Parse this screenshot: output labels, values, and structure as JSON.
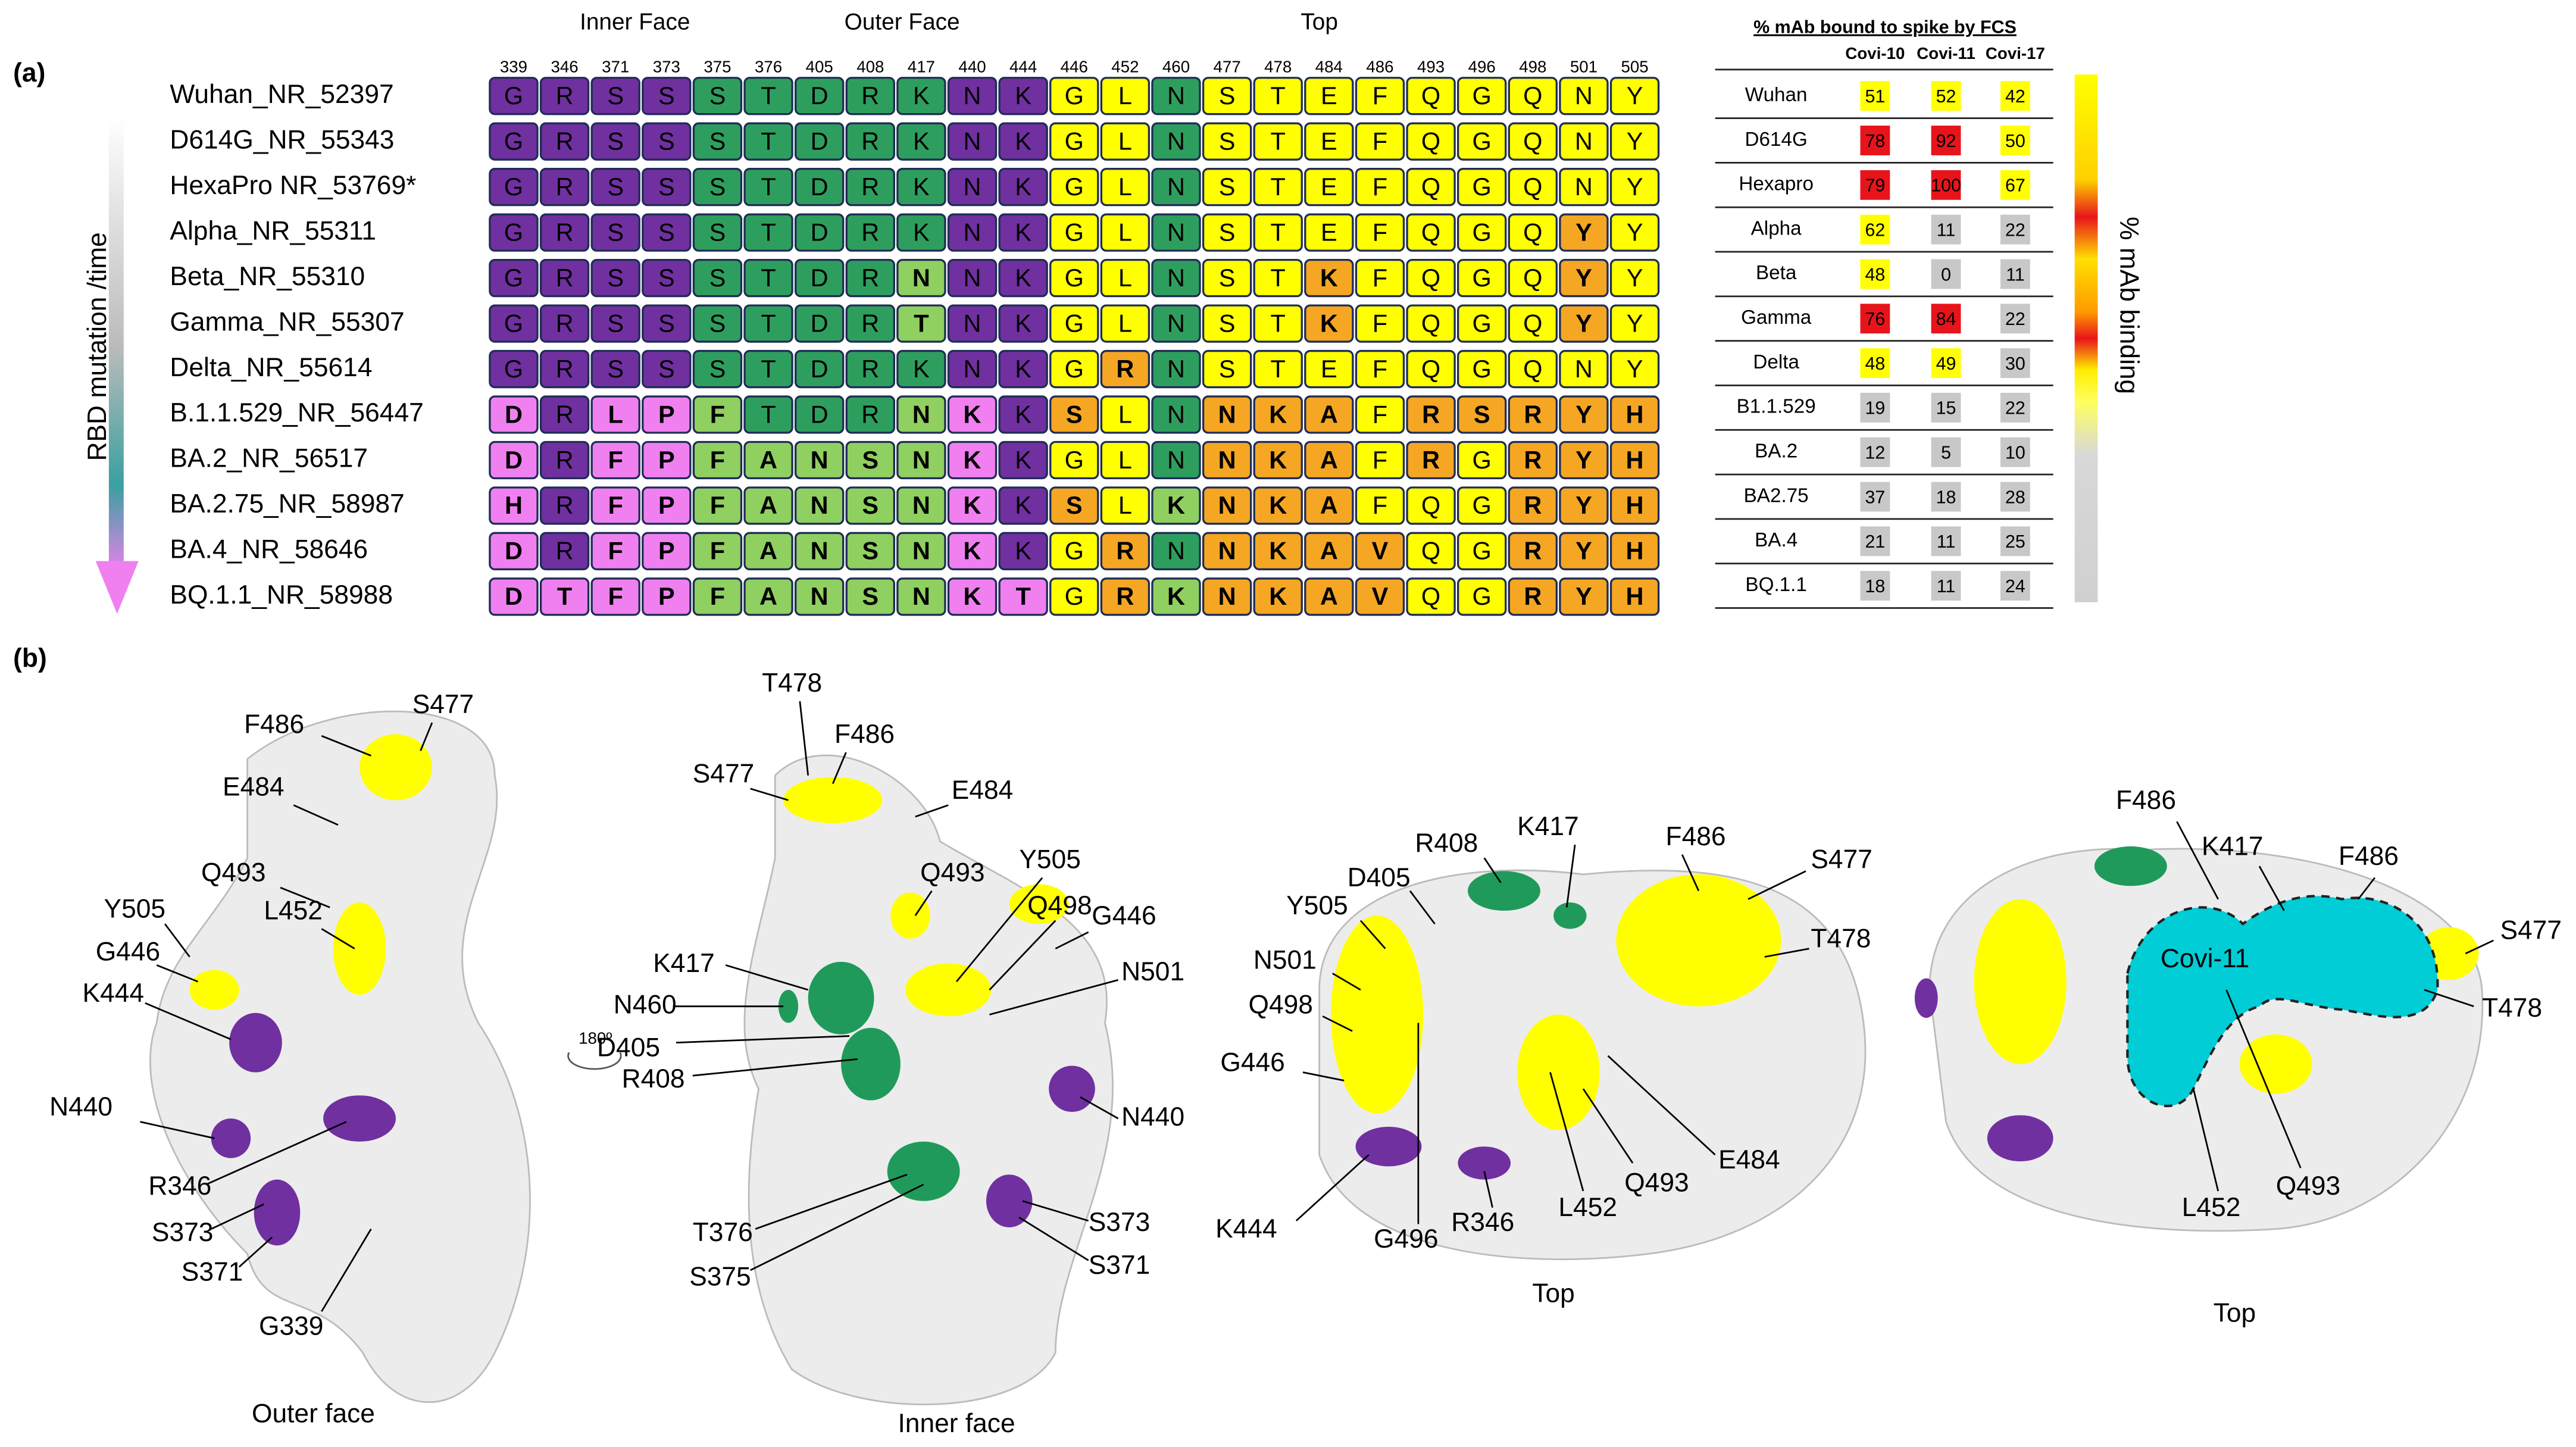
{
  "panel_a": {
    "label": "(a)",
    "face_labels": [
      "Inner Face",
      "Outer Face",
      "Top"
    ],
    "axis_label": "RBD  mutation /time",
    "positions": [
      339,
      346,
      371,
      373,
      375,
      376,
      405,
      408,
      417,
      440,
      444,
      446,
      452,
      460,
      477,
      478,
      484,
      486,
      493,
      496,
      498,
      501,
      505
    ],
    "column_colors": [
      "#7030a0",
      "#7030a0",
      "#7030a0",
      "#7030a0",
      "#2e9e5e",
      "#2e9e5e",
      "#2e9e5e",
      "#2e9e5e",
      "#2e9e5e",
      "#7030a0",
      "#7030a0",
      "#ffff00",
      "#ffff00",
      "#2e9e5e",
      "#ffff00",
      "#ffff00",
      "#ffff00",
      "#ffff00",
      "#ffff00",
      "#ffff00",
      "#ffff00",
      "#ffff00",
      "#ffff00"
    ],
    "mutant_colors": [
      "#f080f0",
      "#f080f0",
      "#f080f0",
      "#f080f0",
      "#8fd060",
      "#8fd060",
      "#8fd060",
      "#8fd060",
      "#8fd060",
      "#f080f0",
      "#f080f0",
      "#f5a623",
      "#f5a623",
      "#8fd060",
      "#f5a623",
      "#f5a623",
      "#f5a623",
      "#f5a623",
      "#f5a623",
      "#f5a623",
      "#f5a623",
      "#f5a623",
      "#f5a623"
    ],
    "variants": [
      {
        "name": "Wuhan_NR_52397",
        "residues": [
          "G",
          "R",
          "S",
          "S",
          "S",
          "T",
          "D",
          "R",
          "K",
          "N",
          "K",
          "G",
          "L",
          "N",
          "S",
          "T",
          "E",
          "F",
          "Q",
          "G",
          "Q",
          "N",
          "Y"
        ]
      },
      {
        "name": "D614G_NR_55343",
        "residues": [
          "G",
          "R",
          "S",
          "S",
          "S",
          "T",
          "D",
          "R",
          "K",
          "N",
          "K",
          "G",
          "L",
          "N",
          "S",
          "T",
          "E",
          "F",
          "Q",
          "G",
          "Q",
          "N",
          "Y"
        ]
      },
      {
        "name": "HexaPro NR_53769*",
        "residues": [
          "G",
          "R",
          "S",
          "S",
          "S",
          "T",
          "D",
          "R",
          "K",
          "N",
          "K",
          "G",
          "L",
          "N",
          "S",
          "T",
          "E",
          "F",
          "Q",
          "G",
          "Q",
          "N",
          "Y"
        ]
      },
      {
        "name": "Alpha_NR_55311",
        "residues": [
          "G",
          "R",
          "S",
          "S",
          "S",
          "T",
          "D",
          "R",
          "K",
          "N",
          "K",
          "G",
          "L",
          "N",
          "S",
          "T",
          "E",
          "F",
          "Q",
          "G",
          "Q",
          "Y",
          "Y"
        ]
      },
      {
        "name": "Beta_NR_55310",
        "residues": [
          "G",
          "R",
          "S",
          "S",
          "S",
          "T",
          "D",
          "R",
          "N",
          "N",
          "K",
          "G",
          "L",
          "N",
          "S",
          "T",
          "K",
          "F",
          "Q",
          "G",
          "Q",
          "Y",
          "Y"
        ]
      },
      {
        "name": "Gamma_NR_55307",
        "residues": [
          "G",
          "R",
          "S",
          "S",
          "S",
          "T",
          "D",
          "R",
          "T",
          "N",
          "K",
          "G",
          "L",
          "N",
          "S",
          "T",
          "K",
          "F",
          "Q",
          "G",
          "Q",
          "Y",
          "Y"
        ]
      },
      {
        "name": "Delta_NR_55614",
        "residues": [
          "G",
          "R",
          "S",
          "S",
          "S",
          "T",
          "D",
          "R",
          "K",
          "N",
          "K",
          "G",
          "R",
          "N",
          "S",
          "T",
          "E",
          "F",
          "Q",
          "G",
          "Q",
          "N",
          "Y"
        ]
      },
      {
        "name": "B.1.1.529_NR_56447",
        "residues": [
          "D",
          "R",
          "L",
          "P",
          "F",
          "T",
          "D",
          "R",
          "N",
          "K",
          "K",
          "S",
          "L",
          "N",
          "N",
          "K",
          "A",
          "F",
          "R",
          "S",
          "R",
          "Y",
          "H"
        ]
      },
      {
        "name": "BA.2_NR_56517",
        "residues": [
          "D",
          "R",
          "F",
          "P",
          "F",
          "A",
          "N",
          "S",
          "N",
          "K",
          "K",
          "G",
          "L",
          "N",
          "N",
          "K",
          "A",
          "F",
          "R",
          "G",
          "R",
          "Y",
          "H"
        ]
      },
      {
        "name": "BA.2.75_NR_58987",
        "residues": [
          "H",
          "R",
          "F",
          "P",
          "F",
          "A",
          "N",
          "S",
          "N",
          "K",
          "K",
          "S",
          "L",
          "K",
          "N",
          "K",
          "A",
          "F",
          "Q",
          "G",
          "R",
          "Y",
          "H"
        ]
      },
      {
        "name": "BA.4_NR_58646",
        "residues": [
          "D",
          "R",
          "F",
          "P",
          "F",
          "A",
          "N",
          "S",
          "N",
          "K",
          "K",
          "G",
          "R",
          "N",
          "N",
          "K",
          "A",
          "V",
          "Q",
          "G",
          "R",
          "Y",
          "H"
        ]
      },
      {
        "name": "BQ.1.1_NR_58988",
        "residues": [
          "D",
          "T",
          "F",
          "P",
          "F",
          "A",
          "N",
          "S",
          "N",
          "K",
          "T",
          "G",
          "R",
          "K",
          "N",
          "K",
          "A",
          "V",
          "Q",
          "G",
          "R",
          "Y",
          "H"
        ]
      }
    ],
    "table": {
      "title": "% mAb bound to spike by FCS",
      "columns": [
        "Covi-10",
        "Covi-11",
        "Covi-17"
      ],
      "scale_label": "% mAb binding",
      "color_thresholds": [
        {
          "min": 75,
          "color": "#e8141b"
        },
        {
          "min": 40,
          "color": "#ffff00"
        },
        {
          "min": 0,
          "color": "#c8c8c8"
        }
      ],
      "rows": [
        {
          "name": "Wuhan",
          "values": [
            51,
            52,
            42
          ]
        },
        {
          "name": "D614G",
          "values": [
            78,
            92,
            50
          ]
        },
        {
          "name": "Hexapro",
          "values": [
            79,
            100,
            67
          ]
        },
        {
          "name": "Alpha",
          "values": [
            62,
            11,
            22
          ]
        },
        {
          "name": "Beta",
          "values": [
            48,
            0,
            11
          ]
        },
        {
          "name": "Gamma",
          "values": [
            76,
            84,
            22
          ]
        },
        {
          "name": "Delta",
          "values": [
            48,
            49,
            30
          ]
        },
        {
          "name": "B1.1.529",
          "values": [
            19,
            15,
            22
          ]
        },
        {
          "name": "BA.2",
          "values": [
            12,
            5,
            10
          ]
        },
        {
          "name": "BA2.75",
          "values": [
            37,
            18,
            28
          ]
        },
        {
          "name": "BA.4",
          "values": [
            21,
            11,
            25
          ]
        },
        {
          "name": "BQ.1.1",
          "values": [
            18,
            11,
            24
          ]
        }
      ]
    }
  },
  "panel_b": {
    "label": "(b)",
    "rotation_label": "180º",
    "views": [
      {
        "caption": "Outer face",
        "labels": [
          "F486",
          "S477",
          "E484",
          "Q493",
          "Y505",
          "L452",
          "G446",
          "K444",
          "N440",
          "R346",
          "S373",
          "S371",
          "G339"
        ]
      },
      {
        "caption": "Inner face",
        "labels": [
          "T478",
          "F486",
          "S477",
          "E484",
          "Q493",
          "Y505",
          "Q498",
          "G446",
          "K417",
          "N460",
          "N501",
          "D405",
          "R408",
          "N440",
          "T376",
          "S375",
          "S373",
          "S371"
        ]
      },
      {
        "caption": "Top",
        "labels": [
          "R408",
          "K417",
          "F486",
          "S477",
          "D405",
          "Y505",
          "T478",
          "N501",
          "Q498",
          "G446",
          "K444",
          "G496",
          "R346",
          "L452",
          "Q493",
          "E484"
        ]
      },
      {
        "caption": "Top",
        "epitope_label": "Covi-11",
        "labels": [
          "F486",
          "K417",
          "F486",
          "S477",
          "T478",
          "L452",
          "Q493"
        ]
      }
    ]
  }
}
